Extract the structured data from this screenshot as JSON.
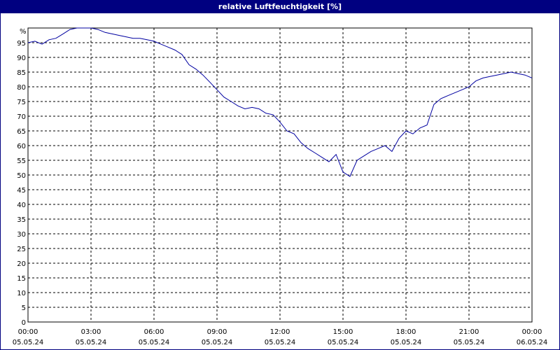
{
  "title": "relative Luftfeuchtigkeit [%]",
  "chart_data": {
    "type": "line",
    "title": "relative Luftfeuchtigkeit [%]",
    "yunit": "%",
    "ylim": [
      0,
      100
    ],
    "yticks": [
      0,
      5,
      10,
      15,
      20,
      25,
      30,
      35,
      40,
      45,
      50,
      55,
      60,
      65,
      70,
      75,
      80,
      85,
      90,
      95
    ],
    "xlim_hours": [
      0,
      24
    ],
    "xticks": [
      {
        "time": "00:00",
        "date": "05.05.24"
      },
      {
        "time": "03:00",
        "date": "05.05.24"
      },
      {
        "time": "06:00",
        "date": "05.05.24"
      },
      {
        "time": "09:00",
        "date": "05.05.24"
      },
      {
        "time": "12:00",
        "date": "05.05.24"
      },
      {
        "time": "15:00",
        "date": "05.05.24"
      },
      {
        "time": "18:00",
        "date": "05.05.24"
      },
      {
        "time": "21:00",
        "date": "05.05.24"
      },
      {
        "time": "00:00",
        "date": "06.05.24"
      }
    ],
    "grid": true,
    "line_color": "#0000a0",
    "series": [
      {
        "x": [
          0,
          0.33,
          0.67,
          1.0,
          1.33,
          1.67,
          2.0,
          2.33,
          2.67,
          3.0,
          3.33,
          3.67,
          4.0,
          4.33,
          4.67,
          5.0,
          5.33,
          5.67,
          6.0,
          6.33,
          6.67,
          7.0,
          7.33,
          7.67,
          8.0,
          8.33,
          8.67,
          9.0,
          9.33,
          9.67,
          10.0,
          10.33,
          10.67,
          11.0,
          11.33,
          11.67,
          12.0,
          12.33,
          12.67,
          13.0,
          13.33,
          13.67,
          14.0,
          14.33,
          14.67,
          15.0,
          15.33,
          15.67,
          16.0,
          16.33,
          16.67,
          17.0,
          17.33,
          17.67,
          18.0,
          18.33,
          18.67,
          19.0,
          19.33,
          19.67,
          20.0,
          20.33,
          20.67,
          21.0,
          21.33,
          21.67,
          22.0,
          22.33,
          22.67,
          23.0,
          23.33,
          23.67,
          24.0
        ],
        "y": [
          95,
          95.5,
          94.5,
          96,
          96.5,
          98,
          99.5,
          100,
          100,
          100,
          99.5,
          98.5,
          98,
          97.5,
          97,
          96.5,
          96.5,
          96,
          95.5,
          94.5,
          93.5,
          92.5,
          91,
          87.5,
          86,
          84,
          81.5,
          79,
          76.5,
          75,
          73.5,
          72.5,
          73,
          72.5,
          71,
          70.5,
          68,
          65,
          64,
          61,
          59,
          57.5,
          56,
          54.5,
          57,
          51,
          49.5,
          55,
          56.5,
          58,
          59,
          60,
          58,
          62.5,
          65,
          64,
          66,
          67,
          74,
          76,
          77,
          78,
          79,
          80,
          82,
          83,
          83.5,
          84,
          84.5,
          85,
          84.5,
          84,
          83
        ]
      }
    ]
  }
}
